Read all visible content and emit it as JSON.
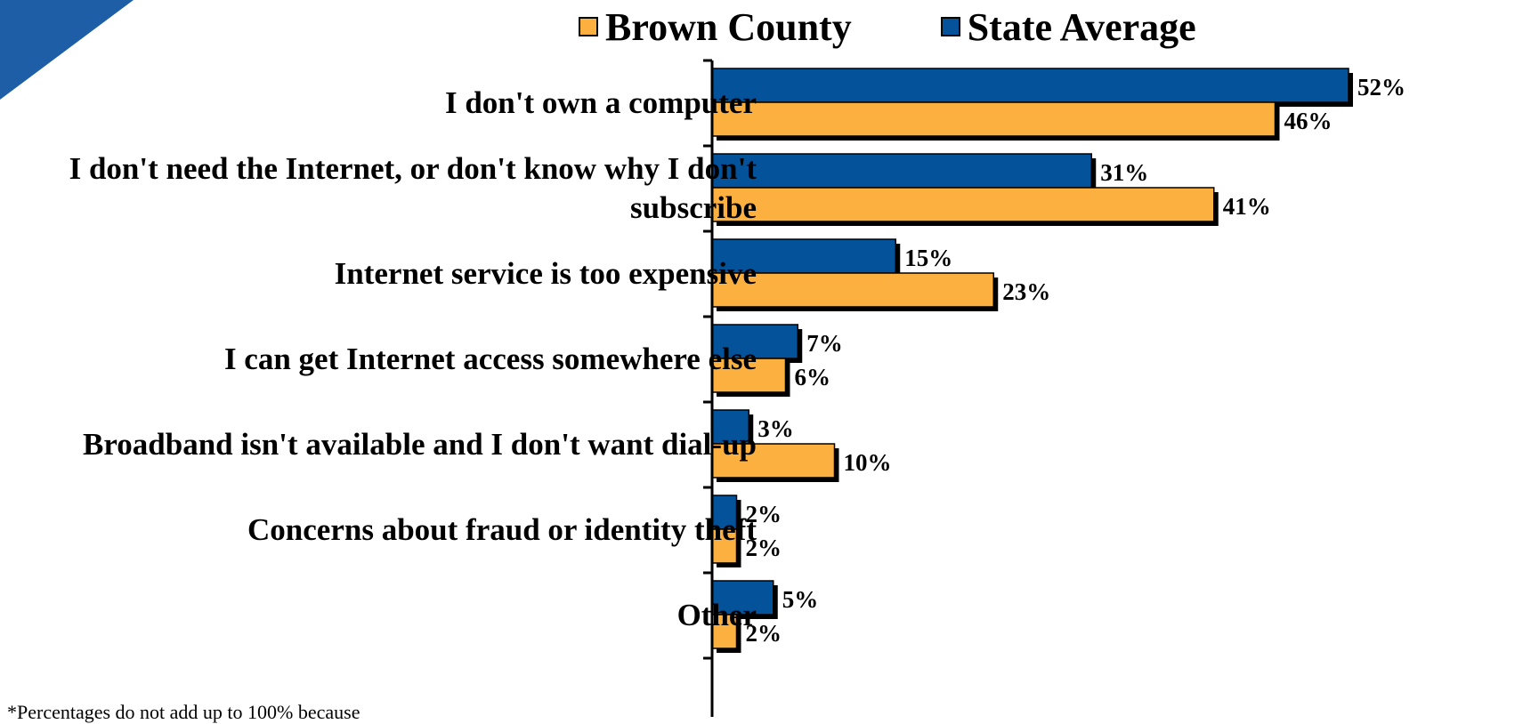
{
  "legend": {
    "items": [
      {
        "label": "Brown County",
        "color": "#fbb040"
      },
      {
        "label": "State Average",
        "color": "#04539a"
      }
    ]
  },
  "chart_data": {
    "type": "bar",
    "orientation": "horizontal",
    "categories": [
      "I don't own a computer",
      "I don't need the Internet, or don't know why I don't subscribe",
      "Internet service is too expensive",
      "I can get Internet access somewhere else",
      "Broadband isn't available and I don't want dial-up",
      "Concerns about fraud or identity theft",
      "Other"
    ],
    "series": [
      {
        "name": "State Average",
        "color": "#04539a",
        "values": [
          52,
          31,
          15,
          7,
          3,
          2,
          5
        ],
        "value_labels": [
          "52%",
          "31%",
          "15%",
          "7%",
          "3%",
          "2%",
          "5%"
        ]
      },
      {
        "name": "Brown County",
        "color": "#fbb040",
        "values": [
          46,
          41,
          23,
          6,
          10,
          2,
          2
        ],
        "value_labels": [
          "46%",
          "41%",
          "23%",
          "6%",
          "10%",
          "2%",
          "2%"
        ]
      }
    ],
    "xlim": [
      0,
      52
    ],
    "legend_position": "top",
    "grid": false
  },
  "footnote": "*Percentages do not add up to 100% because"
}
